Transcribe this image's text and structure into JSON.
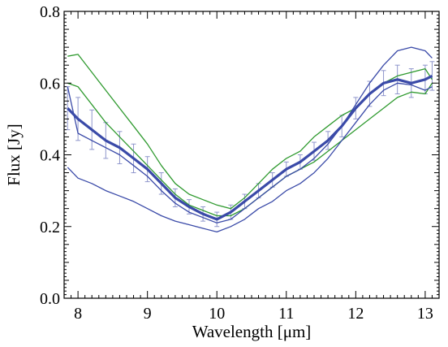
{
  "chart_data": {
    "type": "line",
    "xlabel": "Wavelength [μm]",
    "ylabel": "Flux [Jy]",
    "xlim": [
      7.8,
      13.2
    ],
    "ylim": [
      0.0,
      0.8
    ],
    "xticks": [
      8,
      9,
      10,
      11,
      12,
      13
    ],
    "yticks": [
      0.0,
      0.2,
      0.4,
      0.6,
      0.8
    ],
    "xtick_labels": [
      "8",
      "9",
      "10",
      "11",
      "12",
      "13"
    ],
    "ytick_labels": [
      "0.0",
      "0.2",
      "0.4",
      "0.6",
      "0.8"
    ],
    "grid": false,
    "colors": {
      "blue": "#3a4aa8",
      "green": "#2f9a2f",
      "errorbar": "#8f96cc"
    },
    "series": [
      {
        "style": "mean-with-errorbars",
        "color": "#3a4aa8",
        "x": [
          7.85,
          8.0,
          8.2,
          8.4,
          8.6,
          8.8,
          9.0,
          9.2,
          9.4,
          9.6,
          9.8,
          10.0,
          10.2,
          10.4,
          10.6,
          10.8,
          11.0,
          11.2,
          11.4,
          11.6,
          11.8,
          12.0,
          12.2,
          12.4,
          12.6,
          12.8,
          13.0,
          13.1
        ],
        "y": [
          0.53,
          0.5,
          0.47,
          0.44,
          0.42,
          0.39,
          0.36,
          0.32,
          0.28,
          0.255,
          0.235,
          0.22,
          0.24,
          0.27,
          0.3,
          0.33,
          0.36,
          0.38,
          0.41,
          0.44,
          0.48,
          0.53,
          0.57,
          0.6,
          0.61,
          0.6,
          0.61,
          0.62
        ],
        "err": [
          0.06,
          0.06,
          0.055,
          0.05,
          0.045,
          0.04,
          0.035,
          0.03,
          0.025,
          0.02,
          0.02,
          0.02,
          0.02,
          0.02,
          0.02,
          0.02,
          0.02,
          0.02,
          0.025,
          0.025,
          0.03,
          0.03,
          0.035,
          0.035,
          0.04,
          0.04,
          0.04,
          0.04
        ]
      },
      {
        "style": "thin",
        "color": "#2f9a2f",
        "x": [
          7.85,
          8.0,
          8.2,
          8.4,
          8.6,
          8.8,
          9.0,
          9.2,
          9.4,
          9.6,
          9.8,
          10.0,
          10.2,
          10.4,
          10.6,
          10.8,
          11.0,
          11.2,
          11.4,
          11.6,
          11.8,
          12.0,
          12.2,
          12.4,
          12.6,
          12.8,
          13.0,
          13.1
        ],
        "y": [
          0.675,
          0.68,
          0.63,
          0.58,
          0.53,
          0.48,
          0.43,
          0.37,
          0.32,
          0.29,
          0.275,
          0.26,
          0.25,
          0.28,
          0.32,
          0.36,
          0.39,
          0.41,
          0.45,
          0.48,
          0.51,
          0.53,
          0.57,
          0.6,
          0.62,
          0.63,
          0.64,
          0.61
        ]
      },
      {
        "style": "thin",
        "color": "#2f9a2f",
        "x": [
          7.85,
          8.0,
          8.2,
          8.4,
          8.6,
          8.8,
          9.0,
          9.2,
          9.4,
          9.6,
          9.8,
          10.0,
          10.2,
          10.4,
          10.6,
          10.8,
          11.0,
          11.2,
          11.4,
          11.6,
          11.8,
          12.0,
          12.2,
          12.4,
          12.6,
          12.8,
          13.0,
          13.1
        ],
        "y": [
          0.6,
          0.59,
          0.54,
          0.49,
          0.45,
          0.41,
          0.37,
          0.33,
          0.29,
          0.26,
          0.245,
          0.23,
          0.23,
          0.25,
          0.28,
          0.31,
          0.34,
          0.36,
          0.38,
          0.41,
          0.44,
          0.47,
          0.5,
          0.53,
          0.56,
          0.575,
          0.57,
          0.6
        ]
      },
      {
        "style": "thin",
        "color": "#3a4aa8",
        "x": [
          7.85,
          8.0,
          8.2,
          8.4,
          8.6,
          8.8,
          9.0,
          9.2,
          9.4,
          9.6,
          9.8,
          10.0,
          10.2,
          10.4,
          10.6,
          10.8,
          11.0,
          11.2,
          11.4,
          11.6,
          11.8,
          12.0,
          12.2,
          12.4,
          12.6,
          12.8,
          13.0,
          13.1
        ],
        "y": [
          0.59,
          0.46,
          0.44,
          0.42,
          0.4,
          0.37,
          0.34,
          0.3,
          0.265,
          0.24,
          0.225,
          0.21,
          0.22,
          0.25,
          0.28,
          0.31,
          0.34,
          0.36,
          0.39,
          0.43,
          0.48,
          0.54,
          0.6,
          0.65,
          0.69,
          0.7,
          0.69,
          0.67
        ]
      },
      {
        "style": "thin",
        "color": "#3a4aa8",
        "x": [
          7.85,
          8.0,
          8.2,
          8.4,
          8.6,
          8.8,
          9.0,
          9.2,
          9.4,
          9.6,
          9.8,
          10.0,
          10.2,
          10.4,
          10.6,
          10.8,
          11.0,
          11.2,
          11.4,
          11.6,
          11.8,
          12.0,
          12.2,
          12.4,
          12.6,
          12.8,
          13.0,
          13.1
        ],
        "y": [
          0.365,
          0.335,
          0.32,
          0.3,
          0.285,
          0.27,
          0.25,
          0.23,
          0.215,
          0.205,
          0.195,
          0.185,
          0.2,
          0.22,
          0.25,
          0.27,
          0.3,
          0.32,
          0.35,
          0.39,
          0.44,
          0.49,
          0.54,
          0.58,
          0.6,
          0.595,
          0.58,
          0.59
        ]
      }
    ]
  }
}
